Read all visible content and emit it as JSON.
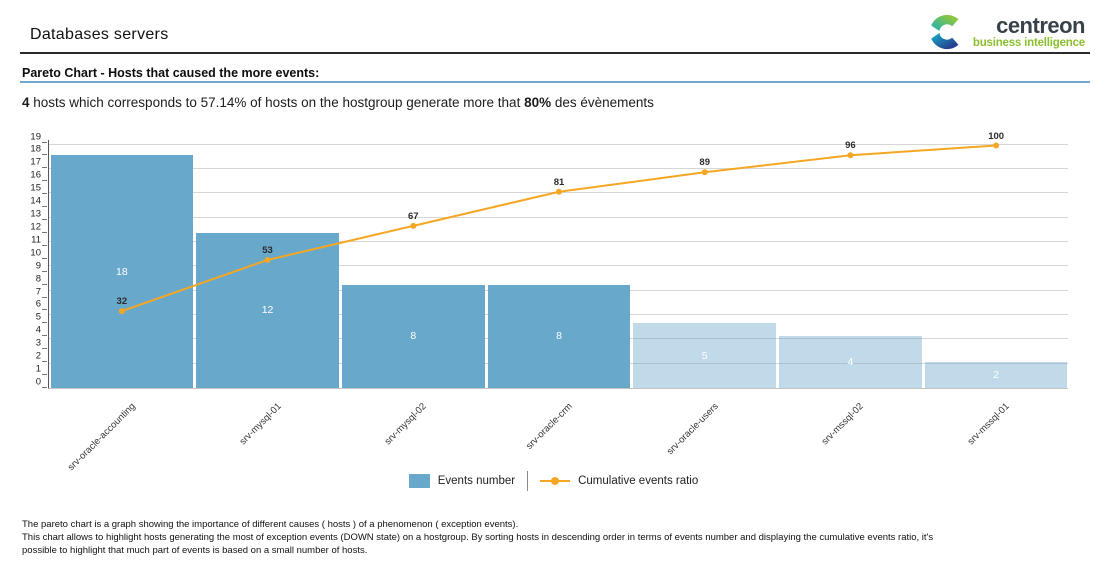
{
  "header": {
    "title": "Databases servers",
    "logo": {
      "brand": "centreon",
      "tagline": "business intelligence",
      "brand_color": "#37424a",
      "tagline_color": "#8cbf2f"
    }
  },
  "report": {
    "heading": "Pareto Chart - Hosts that caused the more events:",
    "summary": {
      "bold1": "4",
      "text1": " hosts which corresponds to 57.14% of hosts on the hostgroup generate more that ",
      "bold2": "80%",
      "text2": " des évènements"
    }
  },
  "chart_data": {
    "type": "bar",
    "subtype": "pareto (bar + cumulative line)",
    "categories": [
      "srv-oracle-accounting",
      "srv-mysql-01",
      "srv-mysql-02",
      "srv-oracle-crm",
      "srv-oracle-users",
      "srv-mssql-02",
      "srv-mssql-01"
    ],
    "series": [
      {
        "name": "Events number",
        "type": "bar",
        "values": [
          18,
          12,
          8,
          8,
          5,
          4,
          2
        ],
        "emphasis": [
          "dark",
          "dark",
          "dark",
          "dark",
          "light",
          "light",
          "light"
        ]
      },
      {
        "name": "Cumulative events ratio",
        "type": "line",
        "values": [
          32,
          53,
          67,
          81,
          89,
          96,
          100
        ]
      }
    ],
    "title": "",
    "xlabel": "",
    "ylabel": "",
    "y_ticks": [
      0,
      1,
      2,
      3,
      4,
      5,
      6,
      7,
      8,
      9,
      10,
      11,
      12,
      13,
      14,
      15,
      16,
      17,
      18,
      19
    ],
    "ylim": [
      0,
      19
    ],
    "pct_lim": [
      0,
      100
    ],
    "grid": "horizontal, every 10% of cumulative axis",
    "legend_position": "bottom-center",
    "colors": {
      "bar_dark": "#68a8cb",
      "bar_light": "rgba(104,168,203,0.42)",
      "line": "#f5a623",
      "gridline": "#d6d6d6"
    }
  },
  "legend": {
    "items": [
      {
        "label": "Events number",
        "marker": "square",
        "color": "#68a8cb"
      },
      {
        "label": "Cumulative events ratio",
        "marker": "line-dot",
        "color": "#f5a623"
      }
    ]
  },
  "footer": {
    "lines": [
      "The pareto chart is a graph showing the importance of different causes ( hosts ) of a phenomenon ( exception events).",
      "This chart allows to highlight hosts generating the most of exception events (DOWN state) on a hostgroup. By sorting hosts in descending order in terms of events number and displaying the cumulative events ratio, it's",
      "possible to highlight that much part of events is based on a small number of hosts."
    ]
  }
}
